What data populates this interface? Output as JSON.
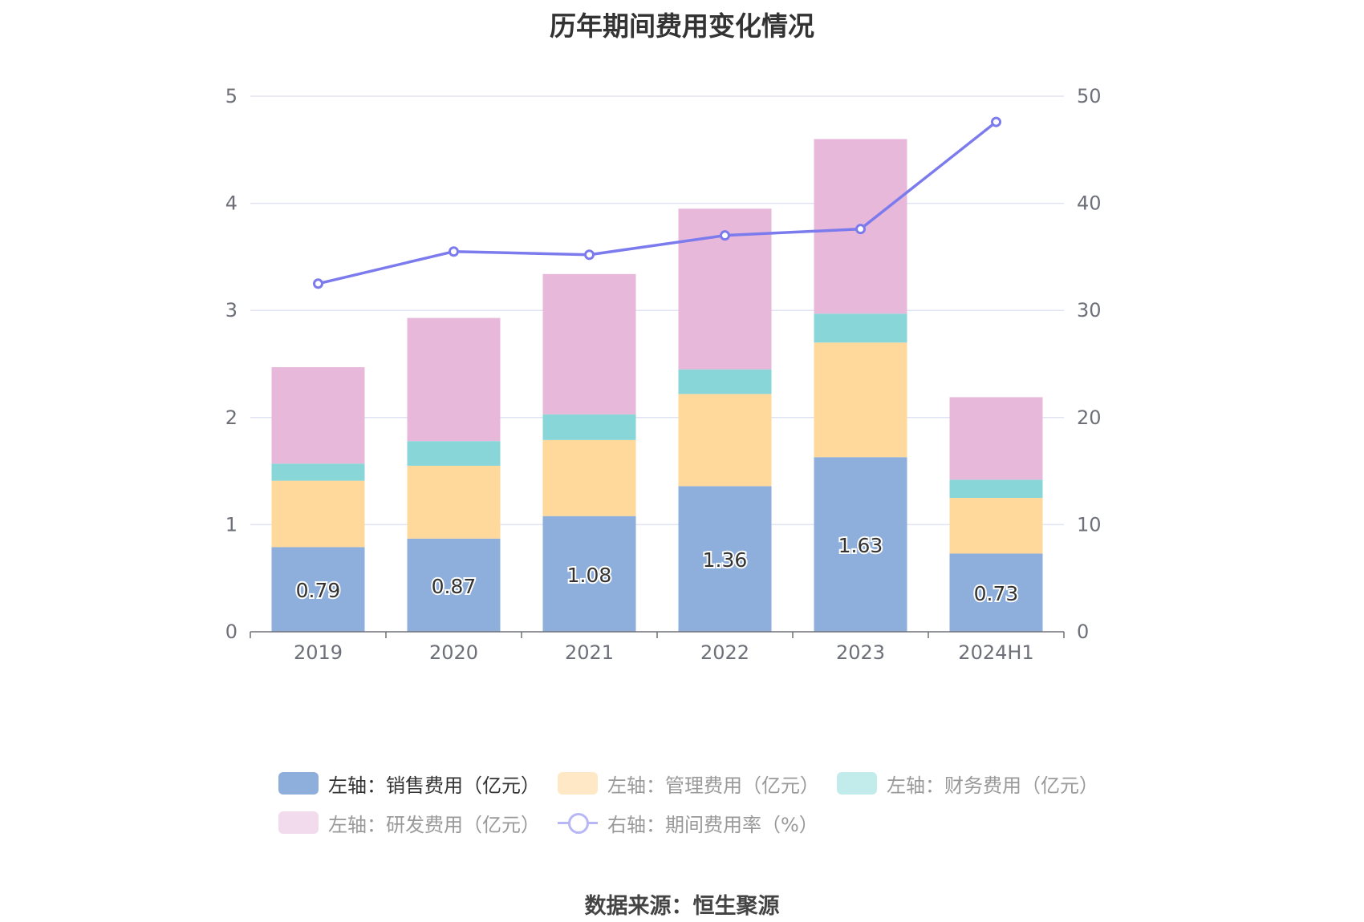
{
  "title": "历年期间费用变化情况",
  "source": "数据来源：恒生聚源",
  "chart_data": {
    "type": "bar",
    "stacked": true,
    "title": "历年期间费用变化情况",
    "categories": [
      "2019",
      "2020",
      "2021",
      "2022",
      "2023",
      "2024H1"
    ],
    "y_left": {
      "ylim": [
        0,
        5
      ],
      "ticks": [
        "0",
        "1",
        "2",
        "3",
        "4",
        "5"
      ]
    },
    "y_right": {
      "ylim": [
        0,
        50
      ],
      "ticks": [
        "0",
        "10",
        "20",
        "30",
        "40",
        "50"
      ]
    },
    "grid": true,
    "legend_position": "bottom",
    "series": [
      {
        "name": "左轴：销售费用（亿元）",
        "axis": "left",
        "kind": "bar",
        "color": "#8eaedb",
        "values": [
          0.79,
          0.87,
          1.08,
          1.36,
          1.63,
          0.73
        ],
        "labels": [
          "0.79",
          "0.87",
          "1.08",
          "1.36",
          "1.63",
          "0.73"
        ]
      },
      {
        "name": "左轴：管理费用（亿元）",
        "axis": "left",
        "kind": "bar",
        "color": "#fed99b",
        "values": [
          0.62,
          0.68,
          0.71,
          0.86,
          1.07,
          0.52
        ]
      },
      {
        "name": "左轴：财务费用（亿元）",
        "axis": "left",
        "kind": "bar",
        "color": "#89d6d9",
        "values": [
          0.16,
          0.23,
          0.24,
          0.23,
          0.27,
          0.17
        ]
      },
      {
        "name": "左轴：研发费用（亿元）",
        "axis": "left",
        "kind": "bar",
        "color": "#e7b8d9",
        "values": [
          0.9,
          1.15,
          1.31,
          1.5,
          1.63,
          0.77
        ]
      },
      {
        "name": "右轴：期间费用率（%）",
        "axis": "right",
        "kind": "line",
        "color": "#7b7bee",
        "values": [
          32.5,
          35.5,
          35.2,
          37.0,
          37.6,
          47.6
        ]
      }
    ]
  },
  "legend": {
    "items": [
      {
        "label": "左轴：销售费用（亿元）",
        "color": "#8eaedb",
        "active": true
      },
      {
        "label": "左轴：管理费用（亿元）",
        "color": "#ffe8c6",
        "active": false
      },
      {
        "label": "左轴：财务费用（亿元）",
        "color": "#c2ecec",
        "active": false
      },
      {
        "label": "左轴：研发费用（亿元）",
        "color": "#f2dbec",
        "active": false
      },
      {
        "label": "右轴：期间费用率（%）",
        "color": "#b7b7f5",
        "active": false
      }
    ]
  }
}
